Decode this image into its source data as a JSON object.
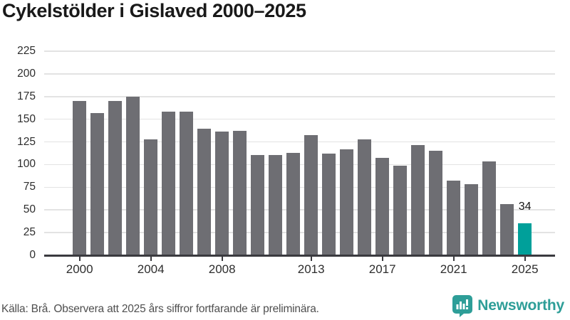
{
  "title": "Cykelstölder i Gislaved 2000–2025",
  "source_note": "Källa: Brå. Observera att 2025 års siffror fortfarande är preliminära.",
  "branding": {
    "logo_text": "Newsworthy",
    "logo_icon": "newsworthy-speech-bubble-bar-chart-icon",
    "brand_color": "#2E9E98"
  },
  "colors": {
    "bar": "#6E6E73",
    "highlight": "#00A09A",
    "gridline": "#E3E3E3",
    "axis": "#3A3A3F",
    "title_text": "#191919",
    "axis_text": "#2D2D2D",
    "source_text": "#4F4F4F",
    "annotation_text": "#141414"
  },
  "chart_data": {
    "type": "bar",
    "title": "Cykelstölder i Gislaved 2000–2025",
    "xlabel": "",
    "ylabel": "",
    "x": [
      2000,
      2001,
      2002,
      2003,
      2004,
      2005,
      2006,
      2007,
      2008,
      2009,
      2010,
      2011,
      2012,
      2013,
      2014,
      2015,
      2016,
      2017,
      2018,
      2019,
      2020,
      2021,
      2022,
      2023,
      2024,
      2025
    ],
    "values": [
      169,
      156,
      169,
      174,
      127,
      157,
      157,
      138,
      135,
      136,
      109,
      109,
      112,
      131,
      111,
      116,
      127,
      106,
      98,
      120,
      114,
      81,
      77,
      102,
      55,
      34
    ],
    "highlight_year": 2025,
    "annotation": {
      "year": 2025,
      "text": "34"
    },
    "ylim": [
      0,
      225
    ],
    "y_ticks": [
      0,
      25,
      50,
      75,
      100,
      125,
      150,
      175,
      200,
      225
    ],
    "x_tick_years": [
      2000,
      2004,
      2008,
      2013,
      2017,
      2021,
      2025
    ],
    "x_tick_labels": [
      "2000",
      "2004",
      "2008",
      "2013",
      "2017",
      "2021",
      "2025"
    ],
    "grid": "horizontal",
    "legend": "none"
  }
}
